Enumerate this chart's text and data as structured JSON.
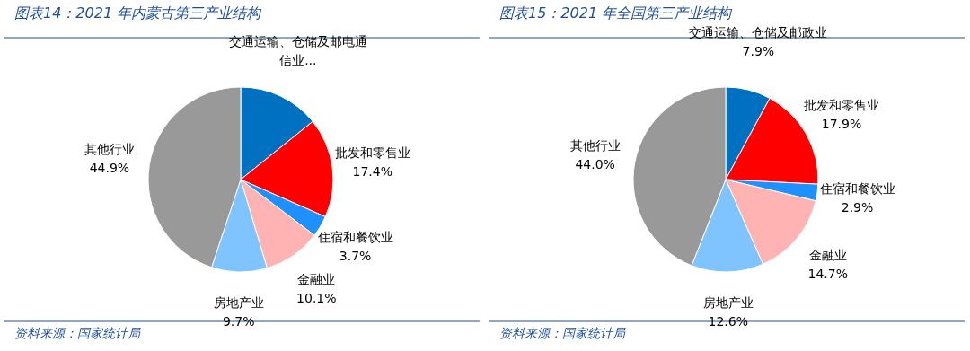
{
  "chart_data": [
    {
      "type": "pie",
      "title": "图表14：2021 年内蒙古第三产业结构",
      "categories": [
        "交通运输、仓储及邮电通信业...",
        "批发和零售业",
        "住宿和餐饮业",
        "金融业",
        "房地产业",
        "其他行业"
      ],
      "values": [
        14.2,
        17.4,
        3.7,
        10.1,
        9.7,
        44.9
      ],
      "value_labels": [
        null,
        "17.4%",
        "3.7%",
        "10.1%",
        "9.7%",
        "44.9%"
      ],
      "colors": [
        "#0070c0",
        "#ff0000",
        "#1e90ff",
        "#ffb3b3",
        "#80c4ff",
        "#999999"
      ],
      "annotations": [
        "资料来源：国家统计局"
      ]
    },
    {
      "type": "pie",
      "title": "图表15：2021 年全国第三产业结构",
      "categories": [
        "交通运输、仓储及邮政业",
        "批发和零售业",
        "住宿和餐饮业",
        "金融业",
        "房地产业",
        "其他行业"
      ],
      "values": [
        7.9,
        17.9,
        2.9,
        14.7,
        12.6,
        44.0
      ],
      "value_labels": [
        "7.9%",
        "17.9%",
        "2.9%",
        "14.7%",
        "12.6%",
        "44.0%"
      ],
      "colors": [
        "#0070c0",
        "#ff0000",
        "#1e90ff",
        "#ffb3b3",
        "#80c4ff",
        "#999999"
      ],
      "annotations": [
        "资料来源：国家统计局"
      ]
    }
  ]
}
